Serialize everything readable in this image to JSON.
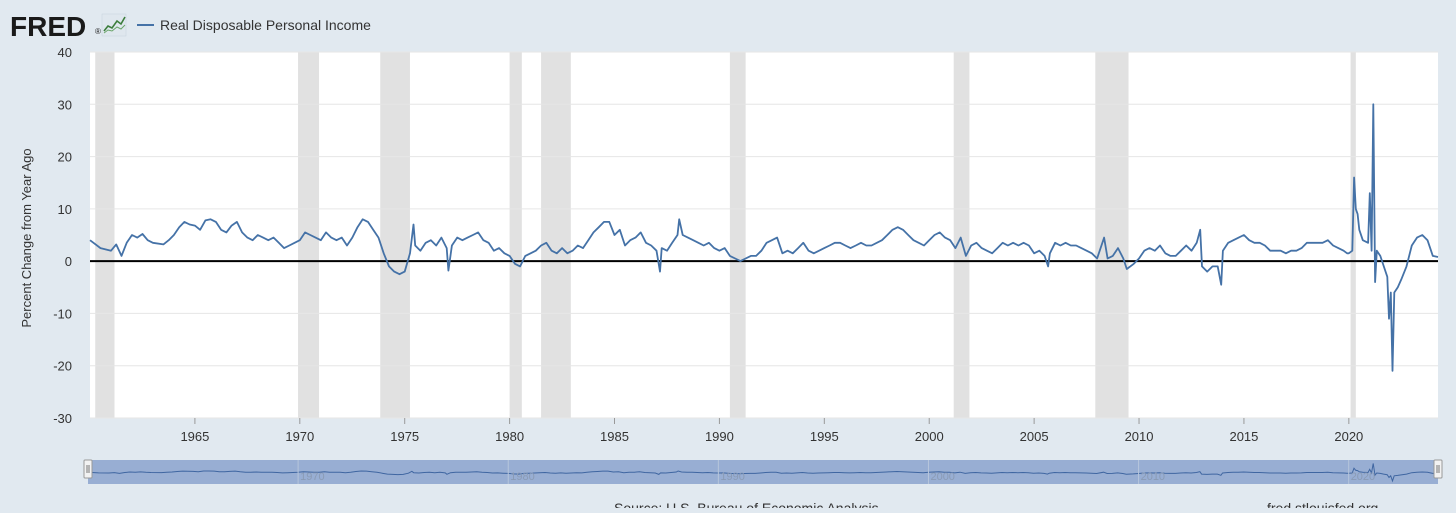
{
  "brand": {
    "logo_text": "FRED",
    "logo_color": "#1a1a1a",
    "trademark": "®",
    "logo_icon": "line-chart-icon"
  },
  "footer": {
    "source": "Source: U.S. Bureau of Economic Analysis",
    "site": "fred.stlouisfed.org"
  },
  "colors": {
    "background": "#e1e9f0",
    "plot_bg": "#ffffff",
    "series": "#4572a7",
    "recession": "#e1e1e1",
    "zero_line": "#000000",
    "navigator_fill": "#8ea7cf",
    "navigator_line": "#4572a7",
    "gridline": "#e6e6e6"
  },
  "chart_data": {
    "type": "line",
    "title": "",
    "ylabel": "Percent Change from Year Ago",
    "xlabel": "",
    "xlim": [
      "1960-01",
      "2024-04"
    ],
    "ylim": [
      -30,
      40
    ],
    "yticks": [
      -30,
      -20,
      -10,
      0,
      10,
      20,
      30,
      40
    ],
    "xticks": [
      "1965",
      "1970",
      "1975",
      "1980",
      "1985",
      "1990",
      "1995",
      "2000",
      "2005",
      "2010",
      "2015",
      "2020"
    ],
    "grid": "horizontal",
    "legend": "top-left",
    "zero_line": 0,
    "recessions": [
      [
        "1960-04",
        "1961-02"
      ],
      [
        "1969-12",
        "1970-11"
      ],
      [
        "1973-11",
        "1975-03"
      ],
      [
        "1980-01",
        "1980-07"
      ],
      [
        "1981-07",
        "1982-11"
      ],
      [
        "1990-07",
        "1991-03"
      ],
      [
        "2001-03",
        "2001-11"
      ],
      [
        "2007-12",
        "2009-06"
      ],
      [
        "2020-02",
        "2020-04"
      ]
    ],
    "navigator": {
      "tick_labels": [
        "1970",
        "1980",
        "1990",
        "2000",
        "2010",
        "2020"
      ]
    },
    "series": [
      {
        "name": "Real Disposable Personal Income",
        "points": [
          [
            "1960-01",
            4.0
          ],
          [
            "1960-07",
            2.5
          ],
          [
            "1961-01",
            2.0
          ],
          [
            "1961-04",
            3.2
          ],
          [
            "1961-07",
            1.0
          ],
          [
            "1961-10",
            3.5
          ],
          [
            "1962-01",
            5.0
          ],
          [
            "1962-04",
            4.5
          ],
          [
            "1962-07",
            5.2
          ],
          [
            "1962-10",
            4.0
          ],
          [
            "1963-01",
            3.5
          ],
          [
            "1963-07",
            3.2
          ],
          [
            "1963-10",
            4.0
          ],
          [
            "1964-01",
            5.0
          ],
          [
            "1964-04",
            6.5
          ],
          [
            "1964-07",
            7.5
          ],
          [
            "1964-10",
            7.0
          ],
          [
            "1965-01",
            6.8
          ],
          [
            "1965-04",
            6.0
          ],
          [
            "1965-07",
            7.8
          ],
          [
            "1965-10",
            8.0
          ],
          [
            "1966-01",
            7.5
          ],
          [
            "1966-04",
            6.0
          ],
          [
            "1966-07",
            5.5
          ],
          [
            "1966-10",
            6.8
          ],
          [
            "1967-01",
            7.5
          ],
          [
            "1967-04",
            5.5
          ],
          [
            "1967-07",
            4.5
          ],
          [
            "1967-10",
            4.0
          ],
          [
            "1968-01",
            5.0
          ],
          [
            "1968-04",
            4.5
          ],
          [
            "1968-07",
            4.0
          ],
          [
            "1968-10",
            4.5
          ],
          [
            "1969-01",
            3.5
          ],
          [
            "1969-04",
            2.5
          ],
          [
            "1969-07",
            3.0
          ],
          [
            "1969-10",
            3.5
          ],
          [
            "1970-01",
            4.0
          ],
          [
            "1970-04",
            5.5
          ],
          [
            "1970-07",
            5.0
          ],
          [
            "1970-10",
            4.5
          ],
          [
            "1971-01",
            4.0
          ],
          [
            "1971-04",
            5.5
          ],
          [
            "1971-07",
            4.5
          ],
          [
            "1971-10",
            4.0
          ],
          [
            "1972-01",
            4.5
          ],
          [
            "1972-04",
            3.0
          ],
          [
            "1972-07",
            4.5
          ],
          [
            "1972-10",
            6.5
          ],
          [
            "1973-01",
            8.0
          ],
          [
            "1973-04",
            7.5
          ],
          [
            "1973-07",
            6.0
          ],
          [
            "1973-10",
            4.5
          ],
          [
            "1974-01",
            1.5
          ],
          [
            "1974-04",
            -1.0
          ],
          [
            "1974-07",
            -2.0
          ],
          [
            "1974-10",
            -2.5
          ],
          [
            "1975-01",
            -2.0
          ],
          [
            "1975-04",
            1.5
          ],
          [
            "1975-06",
            7.0
          ],
          [
            "1975-07",
            3.0
          ],
          [
            "1975-10",
            2.0
          ],
          [
            "1976-01",
            3.5
          ],
          [
            "1976-04",
            4.0
          ],
          [
            "1976-07",
            3.0
          ],
          [
            "1976-10",
            4.5
          ],
          [
            "1977-01",
            2.5
          ],
          [
            "1977-02",
            -1.8
          ],
          [
            "1977-04",
            3.0
          ],
          [
            "1977-07",
            4.5
          ],
          [
            "1977-10",
            4.0
          ],
          [
            "1978-01",
            4.5
          ],
          [
            "1978-04",
            5.0
          ],
          [
            "1978-07",
            5.5
          ],
          [
            "1978-10",
            4.0
          ],
          [
            "1979-01",
            3.5
          ],
          [
            "1979-04",
            2.0
          ],
          [
            "1979-07",
            2.5
          ],
          [
            "1979-10",
            1.5
          ],
          [
            "1980-01",
            1.0
          ],
          [
            "1980-04",
            -0.5
          ],
          [
            "1980-07",
            -1.0
          ],
          [
            "1980-10",
            1.0
          ],
          [
            "1981-01",
            1.5
          ],
          [
            "1981-04",
            2.0
          ],
          [
            "1981-07",
            3.0
          ],
          [
            "1981-10",
            3.5
          ],
          [
            "1982-01",
            2.0
          ],
          [
            "1982-04",
            1.5
          ],
          [
            "1982-07",
            2.5
          ],
          [
            "1982-10",
            1.5
          ],
          [
            "1983-01",
            2.0
          ],
          [
            "1983-04",
            3.0
          ],
          [
            "1983-07",
            2.5
          ],
          [
            "1983-10",
            4.0
          ],
          [
            "1984-01",
            5.5
          ],
          [
            "1984-04",
            6.5
          ],
          [
            "1984-07",
            7.5
          ],
          [
            "1984-10",
            7.5
          ],
          [
            "1985-01",
            5.0
          ],
          [
            "1985-04",
            6.0
          ],
          [
            "1985-07",
            3.0
          ],
          [
            "1985-10",
            4.0
          ],
          [
            "1986-01",
            4.5
          ],
          [
            "1986-04",
            5.5
          ],
          [
            "1986-07",
            3.5
          ],
          [
            "1986-10",
            3.0
          ],
          [
            "1987-01",
            2.0
          ],
          [
            "1987-03",
            -2.0
          ],
          [
            "1987-04",
            2.5
          ],
          [
            "1987-07",
            2.0
          ],
          [
            "1987-10",
            3.5
          ],
          [
            "1988-01",
            5.0
          ],
          [
            "1988-02",
            8.0
          ],
          [
            "1988-04",
            5.0
          ],
          [
            "1988-07",
            4.5
          ],
          [
            "1988-10",
            4.0
          ],
          [
            "1989-01",
            3.5
          ],
          [
            "1989-04",
            3.0
          ],
          [
            "1989-07",
            3.5
          ],
          [
            "1989-10",
            2.5
          ],
          [
            "1990-01",
            2.0
          ],
          [
            "1990-04",
            2.5
          ],
          [
            "1990-07",
            1.0
          ],
          [
            "1990-10",
            0.5
          ],
          [
            "1991-01",
            0.0
          ],
          [
            "1991-04",
            0.5
          ],
          [
            "1991-07",
            1.0
          ],
          [
            "1991-10",
            1.0
          ],
          [
            "1992-01",
            2.0
          ],
          [
            "1992-04",
            3.5
          ],
          [
            "1992-07",
            4.0
          ],
          [
            "1992-10",
            4.5
          ],
          [
            "1993-01",
            1.5
          ],
          [
            "1993-04",
            2.0
          ],
          [
            "1993-07",
            1.5
          ],
          [
            "1993-10",
            2.5
          ],
          [
            "1994-01",
            3.5
          ],
          [
            "1994-04",
            2.0
          ],
          [
            "1994-07",
            1.5
          ],
          [
            "1994-10",
            2.0
          ],
          [
            "1995-01",
            2.5
          ],
          [
            "1995-04",
            3.0
          ],
          [
            "1995-07",
            3.5
          ],
          [
            "1995-10",
            3.5
          ],
          [
            "1996-01",
            3.0
          ],
          [
            "1996-04",
            2.5
          ],
          [
            "1996-07",
            3.0
          ],
          [
            "1996-10",
            3.5
          ],
          [
            "1997-01",
            3.0
          ],
          [
            "1997-04",
            3.0
          ],
          [
            "1997-07",
            3.5
          ],
          [
            "1997-10",
            4.0
          ],
          [
            "1998-01",
            5.0
          ],
          [
            "1998-04",
            6.0
          ],
          [
            "1998-07",
            6.5
          ],
          [
            "1998-10",
            6.0
          ],
          [
            "1999-01",
            5.0
          ],
          [
            "1999-04",
            4.0
          ],
          [
            "1999-07",
            3.5
          ],
          [
            "1999-10",
            3.0
          ],
          [
            "2000-01",
            4.0
          ],
          [
            "2000-04",
            5.0
          ],
          [
            "2000-07",
            5.5
          ],
          [
            "2000-10",
            4.5
          ],
          [
            "2001-01",
            4.0
          ],
          [
            "2001-04",
            2.5
          ],
          [
            "2001-07",
            4.5
          ],
          [
            "2001-10",
            1.0
          ],
          [
            "2002-01",
            3.0
          ],
          [
            "2002-04",
            3.5
          ],
          [
            "2002-07",
            2.5
          ],
          [
            "2002-10",
            2.0
          ],
          [
            "2003-01",
            1.5
          ],
          [
            "2003-04",
            2.5
          ],
          [
            "2003-07",
            3.5
          ],
          [
            "2003-10",
            3.0
          ],
          [
            "2004-01",
            3.5
          ],
          [
            "2004-04",
            3.0
          ],
          [
            "2004-07",
            3.5
          ],
          [
            "2004-10",
            3.0
          ],
          [
            "2005-01",
            1.5
          ],
          [
            "2005-04",
            2.0
          ],
          [
            "2005-07",
            1.0
          ],
          [
            "2005-09",
            -1.0
          ],
          [
            "2005-10",
            1.5
          ],
          [
            "2006-01",
            3.5
          ],
          [
            "2006-04",
            3.0
          ],
          [
            "2006-07",
            3.5
          ],
          [
            "2006-10",
            3.0
          ],
          [
            "2007-01",
            3.0
          ],
          [
            "2007-04",
            2.5
          ],
          [
            "2007-07",
            2.0
          ],
          [
            "2007-10",
            1.5
          ],
          [
            "2008-01",
            0.5
          ],
          [
            "2008-05",
            4.5
          ],
          [
            "2008-07",
            0.5
          ],
          [
            "2008-10",
            1.0
          ],
          [
            "2009-01",
            2.5
          ],
          [
            "2009-04",
            0.5
          ],
          [
            "2009-06",
            -1.5
          ],
          [
            "2009-10",
            -0.5
          ],
          [
            "2010-01",
            0.5
          ],
          [
            "2010-04",
            2.0
          ],
          [
            "2010-07",
            2.5
          ],
          [
            "2010-10",
            2.0
          ],
          [
            "2011-01",
            3.0
          ],
          [
            "2011-04",
            1.5
          ],
          [
            "2011-07",
            1.0
          ],
          [
            "2011-10",
            1.0
          ],
          [
            "2012-01",
            2.0
          ],
          [
            "2012-04",
            3.0
          ],
          [
            "2012-07",
            2.0
          ],
          [
            "2012-10",
            3.5
          ],
          [
            "2012-12",
            6.0
          ],
          [
            "2013-01",
            -1.0
          ],
          [
            "2013-04",
            -2.0
          ],
          [
            "2013-07",
            -1.0
          ],
          [
            "2013-10",
            -1.0
          ],
          [
            "2013-12",
            -4.5
          ],
          [
            "2014-01",
            2.0
          ],
          [
            "2014-04",
            3.5
          ],
          [
            "2014-07",
            4.0
          ],
          [
            "2014-10",
            4.5
          ],
          [
            "2015-01",
            5.0
          ],
          [
            "2015-04",
            4.0
          ],
          [
            "2015-07",
            3.5
          ],
          [
            "2015-10",
            3.5
          ],
          [
            "2016-01",
            3.0
          ],
          [
            "2016-04",
            2.0
          ],
          [
            "2016-07",
            2.0
          ],
          [
            "2016-10",
            2.0
          ],
          [
            "2017-01",
            1.5
          ],
          [
            "2017-04",
            2.0
          ],
          [
            "2017-07",
            2.0
          ],
          [
            "2017-10",
            2.5
          ],
          [
            "2018-01",
            3.5
          ],
          [
            "2018-04",
            3.5
          ],
          [
            "2018-07",
            3.5
          ],
          [
            "2018-10",
            3.5
          ],
          [
            "2019-01",
            4.0
          ],
          [
            "2019-04",
            3.0
          ],
          [
            "2019-07",
            2.5
          ],
          [
            "2019-10",
            2.0
          ],
          [
            "2019-12",
            1.5
          ],
          [
            "2020-01",
            1.5
          ],
          [
            "2020-03",
            2.0
          ],
          [
            "2020-04",
            16.0
          ],
          [
            "2020-05",
            10.0
          ],
          [
            "2020-06",
            9.0
          ],
          [
            "2020-07",
            6.0
          ],
          [
            "2020-09",
            4.0
          ],
          [
            "2020-12",
            3.5
          ],
          [
            "2021-01",
            13.0
          ],
          [
            "2021-02",
            2.0
          ],
          [
            "2021-03",
            30.0
          ],
          [
            "2021-04",
            -4.0
          ],
          [
            "2021-05",
            2.0
          ],
          [
            "2021-07",
            1.0
          ],
          [
            "2021-09",
            -1.0
          ],
          [
            "2021-11",
            -3.0
          ],
          [
            "2021-12",
            -11.0
          ],
          [
            "2022-01",
            -6.0
          ],
          [
            "2022-02",
            -21.0
          ],
          [
            "2022-03",
            -6.0
          ],
          [
            "2022-05",
            -5.0
          ],
          [
            "2022-07",
            -3.5
          ],
          [
            "2022-10",
            -1.0
          ],
          [
            "2023-01",
            3.0
          ],
          [
            "2023-04",
            4.5
          ],
          [
            "2023-07",
            5.0
          ],
          [
            "2023-10",
            4.0
          ],
          [
            "2024-01",
            1.0
          ],
          [
            "2024-04",
            0.8
          ]
        ]
      }
    ]
  }
}
